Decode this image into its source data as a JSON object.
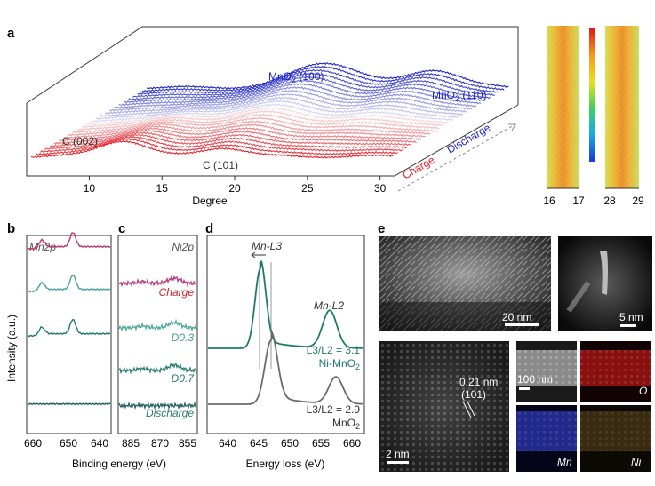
{
  "panels": {
    "a": {
      "label": "a",
      "xlabel": "Degree",
      "xticks": [
        "10",
        "15",
        "20",
        "25",
        "30"
      ],
      "annotations": {
        "mno2_100": "MnO",
        "mno2_100_sub": "2",
        "mno2_100_hkl": " (100)",
        "mno2_110": "MnO",
        "mno2_110_sub": "2",
        "mno2_110_hkl": " (110)",
        "c002": "C (002)",
        "c101": "C (101)",
        "charge": "Charge",
        "discharge": "Discharge"
      },
      "contour_ticks": {
        "left": [
          "16",
          "17"
        ],
        "right": [
          "28",
          "29"
        ]
      },
      "colors": {
        "charge": "#e8202a",
        "discharge": "#1c22c8",
        "mid": "#ffffff"
      }
    },
    "b": {
      "label": "b",
      "title": "Mn2p",
      "ylabel": "Intensity (a.u.)",
      "xticks": [
        "660",
        "650",
        "640"
      ],
      "traces": [
        {
          "name": "Charge",
          "color": "#c0307a"
        },
        {
          "name": "D0.3",
          "color": "#4aa59a"
        },
        {
          "name": "D0.7",
          "color": "#1f7a6e"
        },
        {
          "name": "Discharge",
          "color": "#1d5e58"
        }
      ]
    },
    "c": {
      "label": "c",
      "title": "Ni2p",
      "xticks": [
        "885",
        "870",
        "855"
      ],
      "trace_labels": [
        "Charge",
        "D0.3",
        "D0.7",
        "Discharge"
      ],
      "label_colors": [
        "#d0202a",
        "#3f9c8f",
        "#2a7a6e",
        "#2a7a6e"
      ]
    },
    "d": {
      "label": "d",
      "title": "Mn-L3",
      "title_right": "Mn-L2",
      "xlabel": "Energy loss (eV)",
      "xticks": [
        "640",
        "645",
        "650",
        "655",
        "660"
      ],
      "ratio_top": "L3/L2 = 3.1",
      "sample_top": "Ni-MnO",
      "sample_top_sub": "2",
      "ratio_bottom": "L3/L2 = 2.9",
      "sample_bottom": "MnO",
      "sample_bottom_sub": "2"
    },
    "e": {
      "label": "e",
      "scale_1": "20 nm",
      "scale_2": "5 nm",
      "scale_3": "2 nm",
      "scale_4": "100 nm",
      "lattice": "0.21 nm",
      "lattice_hkl": "(101)",
      "map_labels": [
        "O",
        "Mn",
        "Ni"
      ]
    }
  },
  "binding_energy_label": "Binding energy (eV)"
}
